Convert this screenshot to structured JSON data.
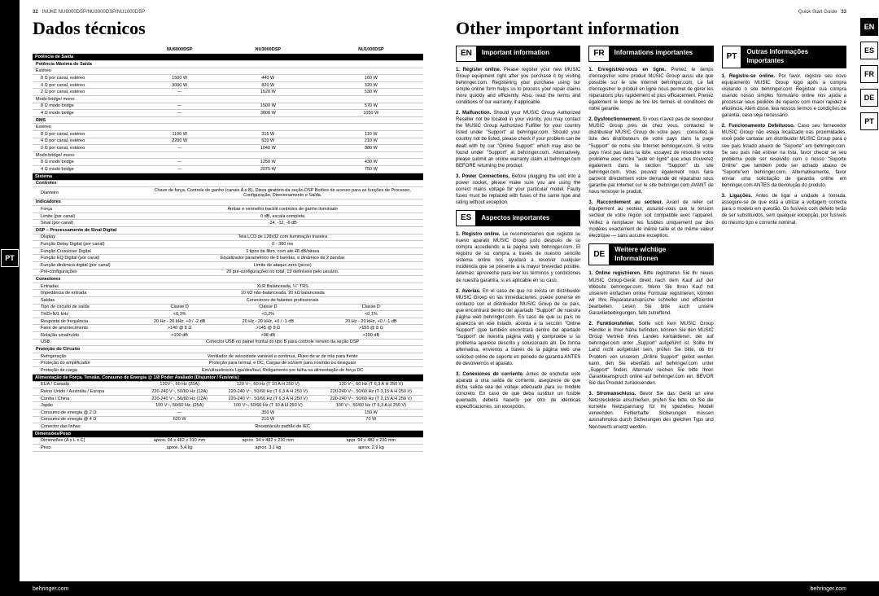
{
  "left": {
    "page_num": "32",
    "header_text": "INUKE NU6000DSP/NU3000DSP/NU1000DSP",
    "title": "Dados técnicos",
    "sidebar_lang": "PT",
    "columns": [
      "NU6000DSP",
      "NU3000DSP",
      "NU1000DSP"
    ],
    "sections": [
      {
        "type": "section",
        "label": "Potência de Saída"
      },
      {
        "type": "subsection",
        "label": "Potência Máxima de Saída"
      },
      {
        "type": "sub",
        "label": "Estéreo"
      },
      {
        "type": "row",
        "label": "8 Ω por canal, estéreo",
        "vals": [
          "1500 W",
          "440 W",
          "160 W"
        ]
      },
      {
        "type": "row",
        "label": "4 Ω por canal, estéreo",
        "vals": [
          "3000 W",
          "820 W",
          "320 W"
        ]
      },
      {
        "type": "row",
        "label": "2 Ω por canal, estéreo",
        "vals": [
          "—",
          "1520 W",
          "530 W"
        ]
      },
      {
        "type": "sub",
        "label": "Modo bridge/ mono"
      },
      {
        "type": "row",
        "label": "8 Ω modo bridge",
        "vals": [
          "—",
          "1500 W",
          "570 W"
        ]
      },
      {
        "type": "row",
        "label": "4 Ω modo bridge",
        "vals": [
          "—",
          "3000 W",
          "1050 W"
        ]
      },
      {
        "type": "subsection",
        "label": "RMS"
      },
      {
        "type": "sub",
        "label": "Estéreo"
      },
      {
        "type": "row",
        "label": "8 Ω por canal, estéreo",
        "vals": [
          "1100 W",
          "315 W",
          "110 W"
        ]
      },
      {
        "type": "row",
        "label": "4 Ω por canal, estéreo",
        "vals": [
          "2200 W",
          "620 W",
          "210 W"
        ]
      },
      {
        "type": "row",
        "label": "2 Ω por canal, estéreo",
        "vals": [
          "—",
          "1040 W",
          "380 W"
        ]
      },
      {
        "type": "sub",
        "label": "Modo bridge/ mono"
      },
      {
        "type": "row",
        "label": "8 Ω modo bridge",
        "vals": [
          "—",
          "1250 W",
          "430 W"
        ]
      },
      {
        "type": "row",
        "label": "4 Ω modo bridge",
        "vals": [
          "—",
          "2075 W",
          "750 W"
        ]
      },
      {
        "type": "section",
        "label": "Sistema"
      },
      {
        "type": "subsection",
        "label": "Controles"
      },
      {
        "type": "rowspan",
        "label": "Dianteiro",
        "val": "Chave de força, Controle de ganho (canais A e B), Disco giratório da seção DSP Botões de acesso para as funções de Processo, Configuração, Direcionamento e Saída."
      },
      {
        "type": "subsection",
        "label": "Indicadores"
      },
      {
        "type": "rowspan",
        "label": "Força",
        "val": "Âmbar e vermelho backlit controles de ganho iluminado"
      },
      {
        "type": "rowspan",
        "label": "Limite (por canal)",
        "val": "0 dB, escala completa"
      },
      {
        "type": "rowspan",
        "label": "Sinal (por canal)",
        "val": "-24, -12, -6 dB"
      },
      {
        "type": "subsection",
        "label": "DSP – Processamento de Sinal Digital"
      },
      {
        "type": "rowspan",
        "label": "Display",
        "val": "Tela LCD de 128x32 com iluminação traseira"
      },
      {
        "type": "rowspan",
        "label": "Função Delay Digital (por canal)",
        "val": "0 - 300 ms"
      },
      {
        "type": "rowspan",
        "label": "Função Crossover Digital",
        "val": "3 tipos de filtro, com até 48 dB/oitava"
      },
      {
        "type": "rowspan",
        "label": "Função EQ Digital (por canal)",
        "val": "Equalizador paramétrico de 8 bandas, e dinâmico de 2 bandas"
      },
      {
        "type": "rowspan",
        "label": "Função dinâmica digital (por canal)",
        "val": "Limite de ataque zero (picos)"
      },
      {
        "type": "rowspan",
        "label": "Pré-configurações",
        "val": "20 pré-configurações no total, 19 definíveis pelo usuário."
      },
      {
        "type": "subsection",
        "label": "Conectores"
      },
      {
        "type": "rowspan",
        "label": "Entradas",
        "val": "XLR Balanceada, ¼\" TRS"
      },
      {
        "type": "rowspan",
        "label": "Impedância de entrada",
        "val": "10 kΩ não-balanceada, 20 kΩ balanceada"
      },
      {
        "type": "rowspan",
        "label": "Saídas",
        "val": "Conectores de falantes profissionais"
      },
      {
        "type": "row",
        "label": "Tipo de circuito de saída",
        "vals": [
          "Classe D",
          "Classe D",
          "Classe D"
        ]
      },
      {
        "type": "row",
        "label": "THD+N/1 kHz",
        "vals": [
          "<0,3%",
          "<0,2%",
          "<0,1%"
        ]
      },
      {
        "type": "row",
        "label": "Resposta de frequência",
        "vals": [
          "20 Hz - 20 kHz, +0 / -2 dB",
          "20 Hz - 20 kHz, +0 / -1 dB",
          "20 Hz - 20 kHz, +0 / -1 dB"
        ]
      },
      {
        "type": "row",
        "label": "Fator de amortecimento",
        "vals": [
          ">140 @ 8 Ω",
          ">145 @ 8 Ω",
          ">155 @ 8 Ω"
        ]
      },
      {
        "type": "row",
        "label": "Relação sinal/ruído",
        "vals": [
          ">100 dB",
          ">98 dB",
          ">100 dB"
        ]
      },
      {
        "type": "rowspan",
        "label": "USB",
        "val": "Conector USB no painel frontal do tipo B para controle remoto da seção DSP"
      },
      {
        "type": "subsection",
        "label": "Proteção do Circuito"
      },
      {
        "type": "rowspan",
        "label": "Refrigeração",
        "val": "Ventilador de velocidade variável e contínua, Fluxo de ar de trás para frente"
      },
      {
        "type": "rowspan",
        "label": "Proteção do amplificador",
        "val": "Proteção para termal, e DC, Cargas de só/sem para nos/não ou desiguais"
      },
      {
        "type": "rowspan",
        "label": "Proteção de carga",
        "val": "Em/ultrasônicos Liga/des/faul, Religamento por falha na alimentação de força DC"
      },
      {
        "type": "section",
        "label": "Alimentação de Força, Tensão, Consumo de Energia @ 1/8 Poder Avaliado (Disjuntor / Fusíveis)"
      },
      {
        "type": "row",
        "label": "EUA / Canadá",
        "vals": [
          "120V~, 60 Hz (25A)",
          "120 V~, 60 Hz (T 10 A H 250 V)",
          "120 V~, 60 Hz (T 6,3 A H 250 V)"
        ]
      },
      {
        "type": "row",
        "label": "Reino Unido / Austrália / Europa",
        "vals": [
          "220-240 V~, 50/60 Hz (12A)",
          "220-240 V~, 50/60 Hz (T 6,3 A H 250 V)",
          "220-240 V~, 50/60 Hz (T 3,15 A H 250 V)"
        ]
      },
      {
        "type": "row",
        "label": "Coréia / China",
        "vals": [
          "220-240 V~, 50/60 Hz (12A)",
          "220-240 V~, 50/60 Hz (T 6,3 A H 250 V)",
          "220-240 V~, 50/60 Hz (T 3,15 A H 250 V)"
        ]
      },
      {
        "type": "row",
        "label": "Japão",
        "vals": [
          "100 V~, 50/60 Hz, (25A)",
          "100 V~, 50/60 Hz (T 10 A H 250 V)",
          "100 V~, 50/60 Hz (T 6,3 A H 250 V)"
        ]
      },
      {
        "type": "row",
        "label": "Consumo de energia @ 2 Ω",
        "vals": [
          "—",
          "350 W",
          "150 W"
        ]
      },
      {
        "type": "row",
        "label": "Consumo de energia @ 4 Ω",
        "vals": [
          "620 W",
          "210 W",
          "70 W"
        ]
      },
      {
        "type": "rowspan",
        "label": "Conector das linhas",
        "val": "Receptáculo padrão de IEC"
      },
      {
        "type": "section",
        "label": "Dimensões/Peso"
      },
      {
        "type": "row",
        "label": "Dimensões (A x L x C)",
        "vals": [
          "aprox. 94 x 482 x 310 mm",
          "aprox. 94 x 482 x 230 mm",
          "appr. 94 x 482 x 230 mm"
        ]
      },
      {
        "type": "row",
        "label": "Peso",
        "vals": [
          "aprox. 5,4 kg",
          "aprox. 3,1 kg",
          "aprox. 2,9 kg"
        ]
      }
    ],
    "footer": "behringer.com"
  },
  "right": {
    "header_text": "Quick Start Guide",
    "page_num": "33",
    "title": "Other important information",
    "sidebar_langs": [
      "EN",
      "ES",
      "FR",
      "DE",
      "PT"
    ],
    "sidebar_active": "EN",
    "blocks": [
      {
        "code": "EN",
        "title": "Important information",
        "items": [
          {
            "h": "1.  Register online.",
            "t": "Please register your new MUSIC Group equipment right after you purchase it by visiting behringer.com. Registering your purchase using our simple online form helps us to process your repair claims more quickly and efficiently. Also, read the terms and conditions of our warranty, if applicable."
          },
          {
            "h": "2.  Malfunction.",
            "t": "Should your MUSIC Group Authorized Reseller not be located in your vicinity, you may contact the MUSIC Group Authorized Fulfiller for your country listed under \"Support\" at behringer.com. Should your country not be listed, please check if your problem can be dealt with by our \"Online Support\" which may also be found under \"Support\" at behringer.com. Alternatively, please submit an online warranty claim at behringer.com BEFORE returning the product."
          },
          {
            "h": "3.  Power Connections.",
            "t": "Before plugging the unit into a power socket, please make sure you are using the correct mains voltage for your particular model. Faulty fuses must be replaced with fuses of the same type and rating without exception."
          }
        ]
      },
      {
        "code": "FR",
        "title": "Informations importantes",
        "items": [
          {
            "h": "1.  Enregistrez-vous en ligne.",
            "t": "Prenez le temps d'enregistrer votre produit MUSIC Group aussi vite que possible sur le site Internet behringer.com. Le fait d'enregistrer le produit en ligne nous permet de gérer les réparations plus rapidement et plus efficacement. Prenez également le temps de lire les termes et conditions de notre garantie."
          },
          {
            "h": "2.  Dysfonctionnement.",
            "t": "Si vous n'avez pas de revendeur MUSIC Group près de chez vous, contactez le distributeur MUSIC Group de votre pays : consultez la liste des distributeurs de votre pays dans la page \"Support\" de notre site Internet behringer.com. Si votre pays n'est pas dans la liste, essayez de résoudre votre problème avec notre \"aide en ligne\" que vous trouverez également dans la section \"Support\" du site behringer.com. Vous pouvez également nous faire parvenir directement votre demande de réparation sous garantie par Internet sur le site behringer.com AVANT de nous renvoyer le produit."
          },
          {
            "h": "3.  Raccordement au secteur.",
            "t": "Avant de relier cet équipement au secteur, assurez-vous que la tension secteur de votre région soit compatible avec l'appareil. Veillez à remplacer les fusibles uniquement par des modèles exactement de même taille et de même valeur électrique — sans aucune exception."
          }
        ]
      },
      {
        "code": "PT",
        "title": "Outras Informações Importantes",
        "items": [
          {
            "h": "1.  Registre-se online.",
            "t": "Por favor, registre seu novo equipamento MUSIC Group logo após a compra visitando o site behringer.com Registrar sua compra usando nosso simples formulário online nos ajuda a processar seus pedidos de reparos com maior rapidez e eficiência. Além disso, leia nossos termos e condições de garantia, caso seja necessário."
          },
          {
            "h": "2.  Funcionamento Defeituoso.",
            "t": "Caso seu fornecedor MUSIC Group não esteja localizado nas proximidades, você pode contatar um distribuidor MUSIC Group para o seu país listado abaixo de \"Suporte\" em behringer.com. Se seu país não estiver na lista, favor checar se seu problema pode ser resolvido com o nosso \"Suporte Online\" que também pode ser achado abaixo de \"Suporte\"em behringer.com. Alternativamente, favor enviar uma solicitação de garantia online em behringer.com ANTES da devolução do produto."
          },
          {
            "h": "3.  Ligações.",
            "t": "Antes de ligar a unidade à tomada, assegure-se de que está a utilizar a voltagem correcta para o modelo em questão. Os fusíveis com defeito terão de ser substituídos, sem qualquer excepção, por fusíveis do mesmo tipo e corrente nominal."
          }
        ]
      },
      {
        "code": "ES",
        "title": "Aspectos importantes",
        "items": [
          {
            "h": "1.  Registro online.",
            "t": "Le recomendamos que registre su nuevo aparato MUSIC Group justo después de su compra accediendo a la página web behringer.com. El registro de su compra a través de nuestro sencillo sistema online nos ayudará a resolver cualquier incidencia que se presente a la mayor brevedad posible. Además, aproveche para leer los términos y condiciones de nuestra garantía, si es aplicable en su caso."
          },
          {
            "h": "2.  Averías.",
            "t": "En el caso de que no exista un distribuidor MUSIC Group en las inmediaciones, puede ponerse en contacto con el distribuidor MUSIC Group de su país, que encontrará dentro del apartado \"Support\" de nuestra página web behringer.com. En caso de que su país no aparezca en ese listado, acceda a la sección \"Online Support\" (que también encontrará dentro del apartado \"Support\" de nuestra página web) y compruebe si su problema aparece descrito y solucionado allí. De forma alternativa, envíenos a través de la página web una solicitud online de soporte en periodo de garantía ANTES de devolvernos el aparato."
          },
          {
            "h": "3.  Conexiones de corriente.",
            "t": "Antes de enchufar este aparato a una salida de corriente, asegúrese de que dicha salida sea del voltaje adecuado para su modelo concreto. En caso de que deba sustituir un fusible quemado, deberá hacerlo por otro de idénticas especificaciones, sin excepción."
          }
        ]
      },
      {
        "code": "DE",
        "title": "Weitere wichtige Informationen",
        "items": [
          {
            "h": "1.  Online registrieren.",
            "t": "Bitte registrieren Sie Ihr neues MUSIC Group-Gerät direkt nach dem Kauf auf der Website behringer.com. Wenn Sie Ihren Kauf mit unserem einfachen online Formular registrieren, können wir Ihre Reparaturansprüche schneller und effizienter bearbeiten. Lesen Sie bitte auch unsere Garantiebedingungen, falls zutreffend."
          },
          {
            "h": "2.  Funktionsfehler.",
            "t": "Sollte sich kein MUSIC Group Händler in Ihrer Nähe befinden, können Sie den MUSIC Group Vertrieb Ihres Landes kontaktieren, der auf behringer.com unter „Support\" aufgeführt ist. Sollte Ihr Land nicht aufgelistet sein, prüfen Sie bitte, ob Ihr Problem von unserem „Online Support\" gelöst werden kann, den Sie ebenfalls auf behringer.com unter „Support\" finden. Alternativ reichen Sie bitte Ihren Garantieanspruch online auf behringer.com ein, BEVOR Sie das Produkt zurücksenden."
          },
          {
            "h": "3.  Stromanschluss.",
            "t": "Bevor Sie das Gerät an eine Netzsteckdose anschließen, prüfen Sie bitte, ob Sie die korrekte Netzspannung für Ihr spezielles Modell verwenden. Fehlerhafte Sicherungen müssen ausnahmslos durch Sicherungen des gleichen Typs und Nennwerts ersetzt werden."
          }
        ]
      }
    ],
    "footer": "behringer.com"
  }
}
